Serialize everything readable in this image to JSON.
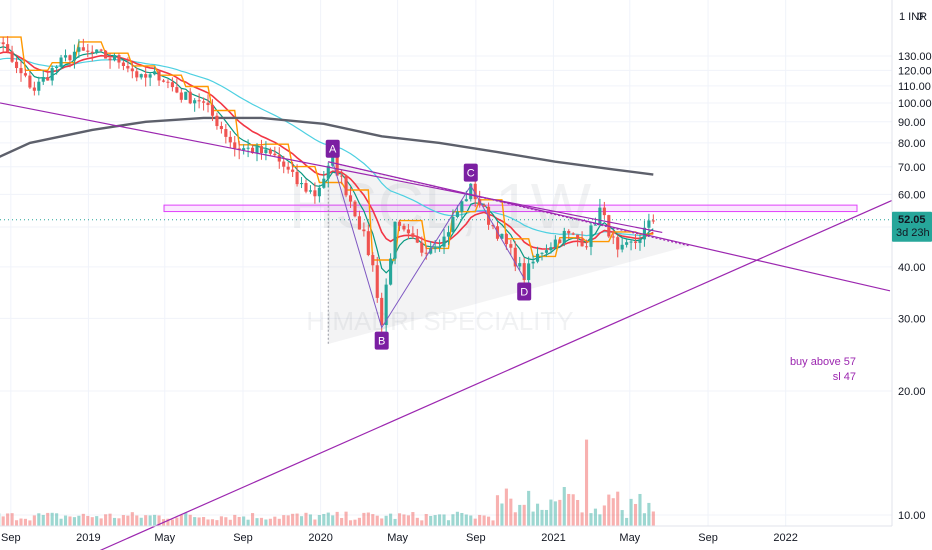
{
  "chart_data": {
    "type": "candlestick",
    "title": "",
    "watermark": {
      "symbol": "HSCL, 1W",
      "name": "HIMADRI SPECIALITY"
    },
    "currency_label": "1 INR",
    "currency_value": "0",
    "yaxis": {
      "min": 8.0,
      "max": 148.0,
      "scale": "log",
      "ticks": [
        "130.00",
        "120.00",
        "110.00",
        "100.00",
        "90.00",
        "80.00",
        "70.00",
        "60.00",
        "50.00",
        "40.00",
        "30.00",
        "20.00",
        "10.00"
      ]
    },
    "xaxis": {
      "ticks": [
        "Sep",
        "2019",
        "May",
        "Sep",
        "2020",
        "May",
        "Sep",
        "2021",
        "May",
        "Sep",
        "2022"
      ]
    },
    "price_label": {
      "value": "52.05",
      "countdown": "3d 23h"
    },
    "annotations": {
      "note_line1": "buy above 57",
      "note_line2": "sl 47"
    },
    "pattern_points": [
      {
        "label": "A",
        "date": "2020-01-20",
        "price": 72
      },
      {
        "label": "B",
        "date": "2020-04-06",
        "price": 28.5
      },
      {
        "label": "C",
        "date": "2020-08-24",
        "price": 63
      },
      {
        "label": "D",
        "date": "2020-11-16",
        "price": 37.5
      }
    ],
    "resistance_zone": {
      "low": 54.5,
      "high": 56.5
    },
    "current_price": 52.05,
    "colors": {
      "up": "#26a69a",
      "down": "#ef5350",
      "ema_fast": "#089981",
      "ema_red": "#f23645",
      "sma_teal": "#4dd0e1",
      "sma_long": "#5d606b",
      "step_orange": "#ff9800",
      "trendline": "#9c27b0",
      "zone": "#e040fb",
      "label_bg": "#7b1fa2",
      "pattern": "#7e57c2"
    },
    "ma_long_points": [
      {
        "date": "2018-07-02",
        "value": 69
      },
      {
        "date": "2018-10-01",
        "value": 80
      },
      {
        "date": "2019-01-07",
        "value": 86
      },
      {
        "date": "2019-04-01",
        "value": 90
      },
      {
        "date": "2019-07-01",
        "value": 92
      },
      {
        "date": "2019-09-30",
        "value": 92
      },
      {
        "date": "2020-01-06",
        "value": 89
      },
      {
        "date": "2020-04-06",
        "value": 83
      },
      {
        "date": "2020-07-06",
        "value": 80
      },
      {
        "date": "2020-10-05",
        "value": 76
      },
      {
        "date": "2021-01-04",
        "value": 72
      },
      {
        "date": "2021-04-05",
        "value": 69
      },
      {
        "date": "2021-06-07",
        "value": 67
      }
    ],
    "volume": {
      "ylim": [
        0,
        100
      ]
    }
  }
}
